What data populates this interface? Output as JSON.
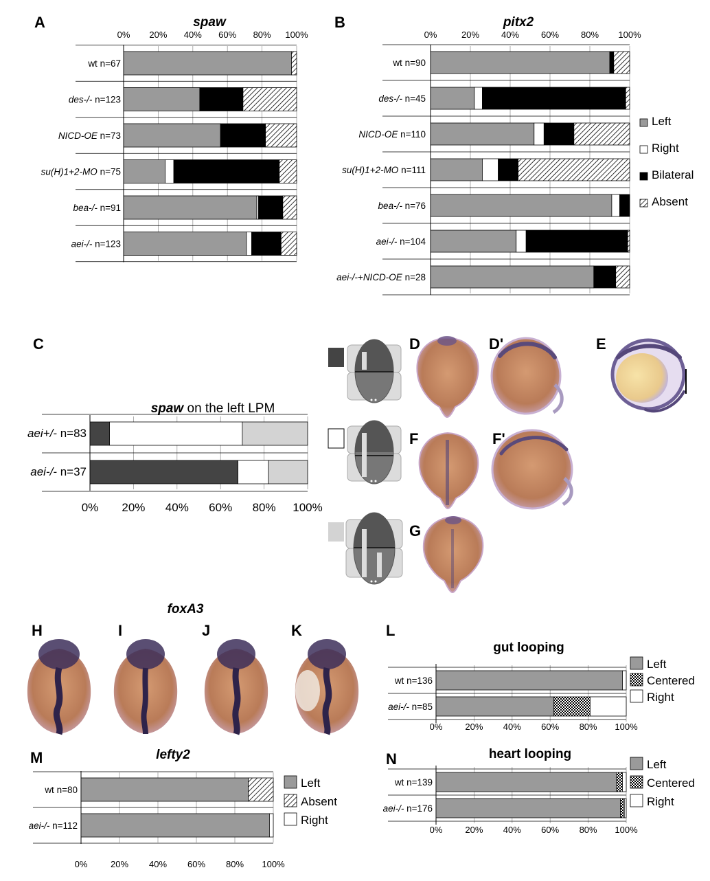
{
  "figure": {
    "panel_labels": [
      "A",
      "B",
      "C",
      "D",
      "D'",
      "E",
      "F",
      "F'",
      "G",
      "H",
      "I",
      "J",
      "K",
      "L",
      "M",
      "N"
    ]
  },
  "colors": {
    "left": "#9a9a9a",
    "right": "#ffffff",
    "bilateral": "#000000",
    "absent": "hatched",
    "centered": "checkered",
    "spaw_left_only": "#444444",
    "spaw_middle": "#ffffff",
    "spaw_bilateral": "#d3d3d3",
    "embryo_brown": "#b87a56",
    "embryo_stain": "#5a4a78"
  },
  "chart_data": [
    {
      "id": "A",
      "type": "bar",
      "orientation": "horizontal",
      "stacked": true,
      "title": "spaw",
      "x_ticks": [
        "0%",
        "20%",
        "40%",
        "60%",
        "80%",
        "100%"
      ],
      "xlim": [
        0,
        100
      ],
      "categories": [
        "wt",
        "des-/-",
        "NICD-OE",
        "su(H)1+2-MO",
        "bea-/-",
        "aei-/-"
      ],
      "category_italic": [
        false,
        true,
        true,
        true,
        true,
        true
      ],
      "n_labels": [
        "n=67",
        "n=123",
        "n=73",
        "n=75",
        "n=91",
        "n=123"
      ],
      "series": [
        {
          "name": "Left",
          "fill": "left",
          "values": [
            97,
            44,
            56,
            24,
            77,
            71
          ]
        },
        {
          "name": "Right",
          "fill": "right",
          "values": [
            0,
            0,
            0,
            5,
            1,
            3
          ]
        },
        {
          "name": "Bilateral",
          "fill": "bilateral",
          "values": [
            0,
            25,
            26,
            61,
            14,
            17
          ]
        },
        {
          "name": "Absent",
          "fill": "absent",
          "values": [
            3,
            31,
            18,
            10,
            8,
            9
          ]
        }
      ]
    },
    {
      "id": "B",
      "type": "bar",
      "orientation": "horizontal",
      "stacked": true,
      "title": "pitx2",
      "x_ticks": [
        "0%",
        "20%",
        "40%",
        "60%",
        "80%",
        "100%"
      ],
      "xlim": [
        0,
        100
      ],
      "categories": [
        "wt",
        "des-/-",
        "NICD-OE",
        "su(H)1+2-MO",
        "bea-/-",
        "aei-/-",
        "aei-/-+NICD-OE"
      ],
      "category_italic": [
        false,
        true,
        true,
        true,
        true,
        true,
        true
      ],
      "n_labels": [
        "n=90",
        "n=45",
        "n=110",
        "n=111",
        "n=76",
        "n=104",
        "n=28"
      ],
      "legend": [
        "Left",
        "Right",
        "Bilateral",
        "Absent"
      ],
      "series": [
        {
          "name": "Left",
          "fill": "left",
          "values": [
            90,
            22,
            52,
            26,
            91,
            43,
            82
          ]
        },
        {
          "name": "Right",
          "fill": "right",
          "values": [
            0,
            4,
            5,
            8,
            4,
            5,
            0
          ]
        },
        {
          "name": "Bilateral",
          "fill": "bilateral",
          "values": [
            2,
            72,
            15,
            10,
            5,
            51,
            11
          ]
        },
        {
          "name": "Absent",
          "fill": "absent",
          "values": [
            8,
            2,
            28,
            56,
            0,
            1,
            7
          ]
        }
      ]
    },
    {
      "id": "C",
      "type": "bar",
      "orientation": "horizontal",
      "stacked": true,
      "title": "spaw on the left LPM",
      "x_ticks": [
        "0%",
        "20%",
        "40%",
        "60%",
        "80%",
        "100%"
      ],
      "xlim": [
        0,
        100
      ],
      "categories": [
        "aei+/-",
        "aei-/-"
      ],
      "category_italic": [
        true,
        true
      ],
      "n_labels": [
        "n=83",
        "n=37"
      ],
      "series": [
        {
          "fill": "spaw_left_only",
          "values": [
            9,
            68
          ]
        },
        {
          "fill": "spaw_middle",
          "values": [
            61,
            14
          ]
        },
        {
          "fill": "spaw_bilateral",
          "values": [
            30,
            18
          ]
        }
      ]
    },
    {
      "id": "L",
      "type": "bar",
      "orientation": "horizontal",
      "stacked": true,
      "title": "gut looping",
      "x_ticks": [
        "0%",
        "20%",
        "40%",
        "60%",
        "80%",
        "100%"
      ],
      "xlim": [
        0,
        100
      ],
      "categories": [
        "wt",
        "aei-/-"
      ],
      "category_italic": [
        false,
        true
      ],
      "n_labels": [
        "n=136",
        "n=85"
      ],
      "legend": [
        "Left",
        "Centered",
        "Right"
      ],
      "series": [
        {
          "name": "Left",
          "fill": "left",
          "values": [
            98,
            62
          ]
        },
        {
          "name": "Centered",
          "fill": "centered",
          "values": [
            0,
            19
          ]
        },
        {
          "name": "Right",
          "fill": "right",
          "values": [
            2,
            19
          ]
        }
      ]
    },
    {
      "id": "M",
      "type": "bar",
      "orientation": "horizontal",
      "stacked": true,
      "title": "lefty2",
      "x_ticks": [
        "0%",
        "20%",
        "40%",
        "60%",
        "80%",
        "100%"
      ],
      "xlim": [
        0,
        100
      ],
      "categories": [
        "wt",
        "aei-/-"
      ],
      "category_italic": [
        false,
        true
      ],
      "n_labels": [
        "n=80",
        "n=112"
      ],
      "legend": [
        "Left",
        "Absent",
        "Right"
      ],
      "series": [
        {
          "name": "Left",
          "fill": "left",
          "values": [
            87,
            98
          ]
        },
        {
          "name": "Absent",
          "fill": "absent",
          "values": [
            13,
            0
          ]
        },
        {
          "name": "Right",
          "fill": "right",
          "values": [
            0,
            2
          ]
        }
      ]
    },
    {
      "id": "N",
      "type": "bar",
      "orientation": "horizontal",
      "stacked": true,
      "title": "heart looping",
      "x_ticks": [
        "0%",
        "20%",
        "40%",
        "60%",
        "80%",
        "100%"
      ],
      "xlim": [
        0,
        100
      ],
      "categories": [
        "wt",
        "aei-/-"
      ],
      "category_italic": [
        false,
        true
      ],
      "n_labels": [
        "n=139",
        "n=176"
      ],
      "legend": [
        "Left",
        "Centered",
        "Right"
      ],
      "series": [
        {
          "name": "Left",
          "fill": "left",
          "values": [
            95,
            97
          ]
        },
        {
          "name": "Centered",
          "fill": "centered",
          "values": [
            3,
            2
          ]
        },
        {
          "name": "Right",
          "fill": "right",
          "values": [
            2,
            1
          ]
        }
      ]
    }
  ],
  "panel_H_title": "foxA3",
  "schematic_keys": [
    "spaw_left_only",
    "spaw_middle",
    "spaw_bilateral"
  ]
}
